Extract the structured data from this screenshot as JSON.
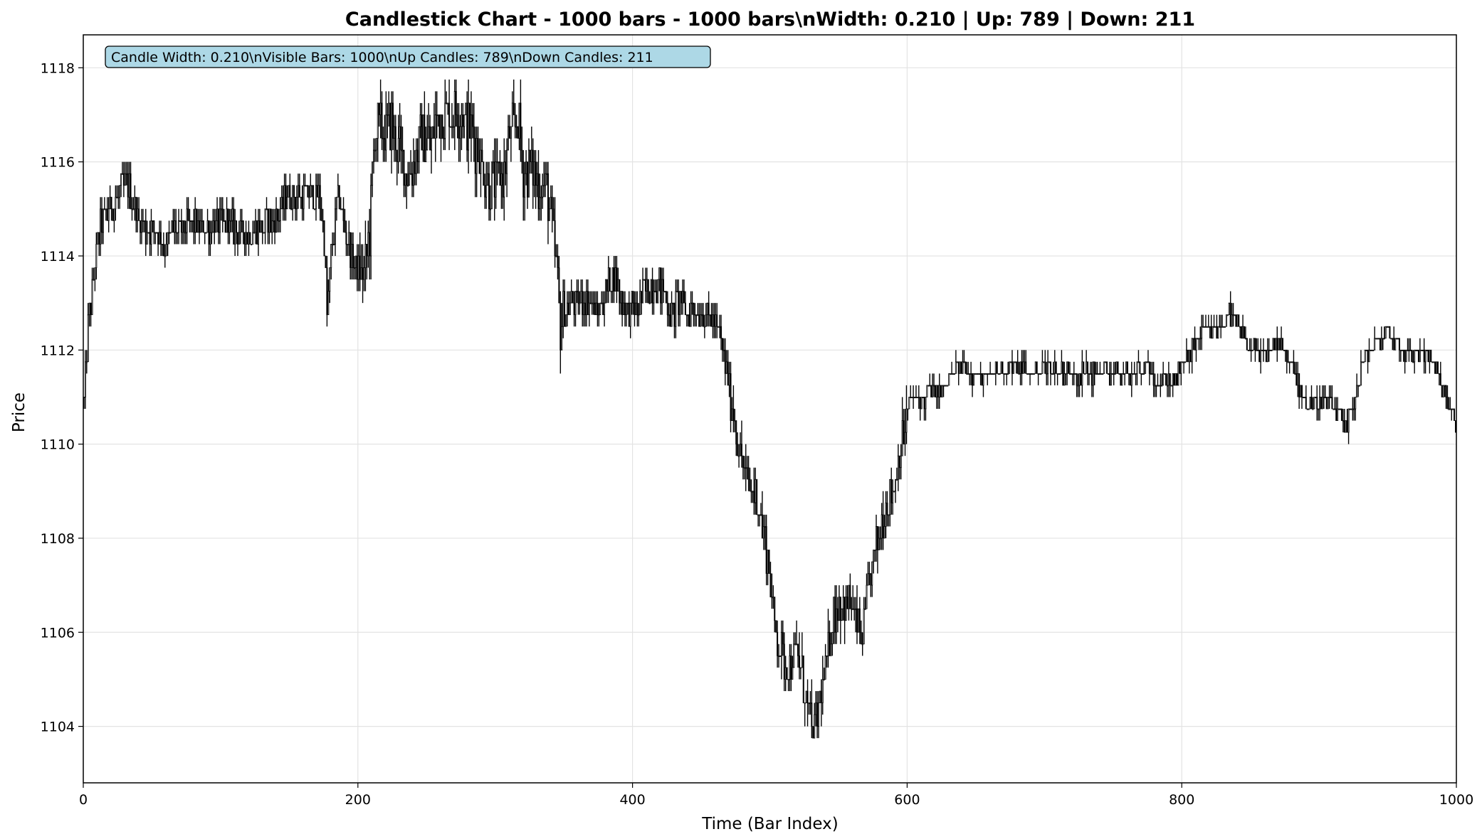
{
  "chart_data": {
    "type": "candlestick",
    "title": "Candlestick Chart - 1000 bars - 1000 bars\\nWidth: 0.210 | Up: 789 | Down: 211",
    "xlabel": "Time (Bar Index)",
    "ylabel": "Price",
    "xlim": [
      0,
      1000
    ],
    "ylim": [
      1102.8,
      1118.7
    ],
    "x_ticks": [
      0,
      200,
      400,
      600,
      800,
      1000
    ],
    "y_ticks": [
      1104,
      1106,
      1108,
      1110,
      1112,
      1114,
      1116,
      1118
    ],
    "grid": true,
    "candle_width": 0.21,
    "up_color": "#ffffff",
    "down_color": "#000000",
    "edge_color": "#000000",
    "info_box": {
      "text": "Candle Width: 0.210\\nVisible Bars: 1000\\nUp Candles: 789\\nDown Candles: 211",
      "background": "#add8e6",
      "placement": "top-left"
    },
    "stats": {
      "bars": 1000,
      "up": 789,
      "down": 211
    },
    "price_path_anchors": [
      [
        0,
        1111.0
      ],
      [
        3,
        1112.5
      ],
      [
        8,
        1113.8
      ],
      [
        12,
        1114.6
      ],
      [
        18,
        1115.0
      ],
      [
        25,
        1115.2
      ],
      [
        30,
        1115.6
      ],
      [
        36,
        1115.2
      ],
      [
        40,
        1114.8
      ],
      [
        46,
        1114.5
      ],
      [
        52,
        1114.6
      ],
      [
        58,
        1114.2
      ],
      [
        65,
        1114.5
      ],
      [
        75,
        1114.6
      ],
      [
        90,
        1114.6
      ],
      [
        105,
        1114.7
      ],
      [
        112,
        1114.5
      ],
      [
        120,
        1114.5
      ],
      [
        130,
        1114.6
      ],
      [
        140,
        1114.8
      ],
      [
        148,
        1115.3
      ],
      [
        158,
        1115.3
      ],
      [
        168,
        1115.3
      ],
      [
        172,
        1115.2
      ],
      [
        175,
        1114.4
      ],
      [
        177,
        1112.8
      ],
      [
        180,
        1114.0
      ],
      [
        185,
        1115.3
      ],
      [
        190,
        1114.6
      ],
      [
        195,
        1114.0
      ],
      [
        200,
        1113.6
      ],
      [
        205,
        1113.7
      ],
      [
        208,
        1114.5
      ],
      [
        212,
        1116.8
      ],
      [
        218,
        1116.6
      ],
      [
        224,
        1116.8
      ],
      [
        230,
        1116.2
      ],
      [
        236,
        1115.7
      ],
      [
        240,
        1116.0
      ],
      [
        246,
        1116.6
      ],
      [
        252,
        1116.4
      ],
      [
        258,
        1117.0
      ],
      [
        264,
        1117.1
      ],
      [
        270,
        1117.1
      ],
      [
        276,
        1117.0
      ],
      [
        282,
        1116.6
      ],
      [
        288,
        1116.2
      ],
      [
        294,
        1115.5
      ],
      [
        300,
        1115.5
      ],
      [
        306,
        1115.8
      ],
      [
        310,
        1116.5
      ],
      [
        316,
        1116.9
      ],
      [
        320,
        1115.7
      ],
      [
        326,
        1115.9
      ],
      [
        332,
        1115.5
      ],
      [
        338,
        1115.3
      ],
      [
        341,
        1114.5
      ],
      [
        344,
        1113.8
      ],
      [
        347,
        1112.5
      ],
      [
        350,
        1112.8
      ],
      [
        356,
        1113.0
      ],
      [
        362,
        1113.1
      ],
      [
        368,
        1113.0
      ],
      [
        374,
        1112.8
      ],
      [
        380,
        1113.3
      ],
      [
        386,
        1113.6
      ],
      [
        392,
        1113.0
      ],
      [
        398,
        1112.8
      ],
      [
        404,
        1112.9
      ],
      [
        410,
        1113.3
      ],
      [
        416,
        1113.5
      ],
      [
        422,
        1113.2
      ],
      [
        428,
        1112.8
      ],
      [
        434,
        1113.0
      ],
      [
        440,
        1112.8
      ],
      [
        446,
        1112.9
      ],
      [
        452,
        1112.8
      ],
      [
        458,
        1112.6
      ],
      [
        462,
        1112.4
      ],
      [
        466,
        1111.8
      ],
      [
        470,
        1111.2
      ],
      [
        474,
        1110.5
      ],
      [
        478,
        1109.8
      ],
      [
        482,
        1109.3
      ],
      [
        486,
        1109.0
      ],
      [
        490,
        1108.9
      ],
      [
        494,
        1108.2
      ],
      [
        498,
        1107.6
      ],
      [
        502,
        1106.3
      ],
      [
        506,
        1105.8
      ],
      [
        510,
        1105.4
      ],
      [
        514,
        1105.3
      ],
      [
        518,
        1105.6
      ],
      [
        522,
        1105.3
      ],
      [
        526,
        1104.5
      ],
      [
        530,
        1103.9
      ],
      [
        534,
        1104.2
      ],
      [
        538,
        1104.9
      ],
      [
        542,
        1105.6
      ],
      [
        546,
        1106.4
      ],
      [
        550,
        1106.7
      ],
      [
        554,
        1106.5
      ],
      [
        558,
        1106.6
      ],
      [
        562,
        1106.2
      ],
      [
        566,
        1105.8
      ],
      [
        570,
        1106.6
      ],
      [
        574,
        1107.4
      ],
      [
        578,
        1107.9
      ],
      [
        582,
        1108.5
      ],
      [
        586,
        1108.8
      ],
      [
        590,
        1109.2
      ],
      [
        594,
        1109.8
      ],
      [
        598,
        1110.4
      ],
      [
        602,
        1110.9
      ],
      [
        606,
        1111.0
      ],
      [
        612,
        1111.0
      ],
      [
        618,
        1111.2
      ],
      [
        624,
        1111.1
      ],
      [
        630,
        1111.4
      ],
      [
        636,
        1111.6
      ],
      [
        642,
        1111.6
      ],
      [
        648,
        1111.5
      ],
      [
        654,
        1111.4
      ],
      [
        660,
        1111.5
      ],
      [
        670,
        1111.6
      ],
      [
        680,
        1111.6
      ],
      [
        690,
        1111.5
      ],
      [
        700,
        1111.6
      ],
      [
        720,
        1111.5
      ],
      [
        740,
        1111.5
      ],
      [
        760,
        1111.5
      ],
      [
        775,
        1111.6
      ],
      [
        785,
        1111.3
      ],
      [
        795,
        1111.4
      ],
      [
        802,
        1111.8
      ],
      [
        808,
        1112.1
      ],
      [
        815,
        1112.4
      ],
      [
        822,
        1112.4
      ],
      [
        828,
        1112.5
      ],
      [
        833,
        1112.8
      ],
      [
        838,
        1112.6
      ],
      [
        844,
        1112.3
      ],
      [
        850,
        1112.0
      ],
      [
        856,
        1111.9
      ],
      [
        862,
        1112.0
      ],
      [
        868,
        1112.2
      ],
      [
        874,
        1112.0
      ],
      [
        880,
        1111.6
      ],
      [
        886,
        1111.2
      ],
      [
        890,
        1110.9
      ],
      [
        896,
        1110.8
      ],
      [
        902,
        1111.0
      ],
      [
        908,
        1110.9
      ],
      [
        914,
        1110.6
      ],
      [
        918,
        1110.2
      ],
      [
        922,
        1110.6
      ],
      [
        926,
        1111.0
      ],
      [
        930,
        1111.6
      ],
      [
        936,
        1112.0
      ],
      [
        942,
        1112.2
      ],
      [
        948,
        1112.4
      ],
      [
        954,
        1112.2
      ],
      [
        960,
        1112.0
      ],
      [
        968,
        1111.9
      ],
      [
        974,
        1112.0
      ],
      [
        980,
        1111.9
      ],
      [
        986,
        1111.5
      ],
      [
        990,
        1111.2
      ],
      [
        994,
        1110.8
      ],
      [
        998,
        1110.5
      ],
      [
        1000,
        1110.4
      ]
    ]
  }
}
